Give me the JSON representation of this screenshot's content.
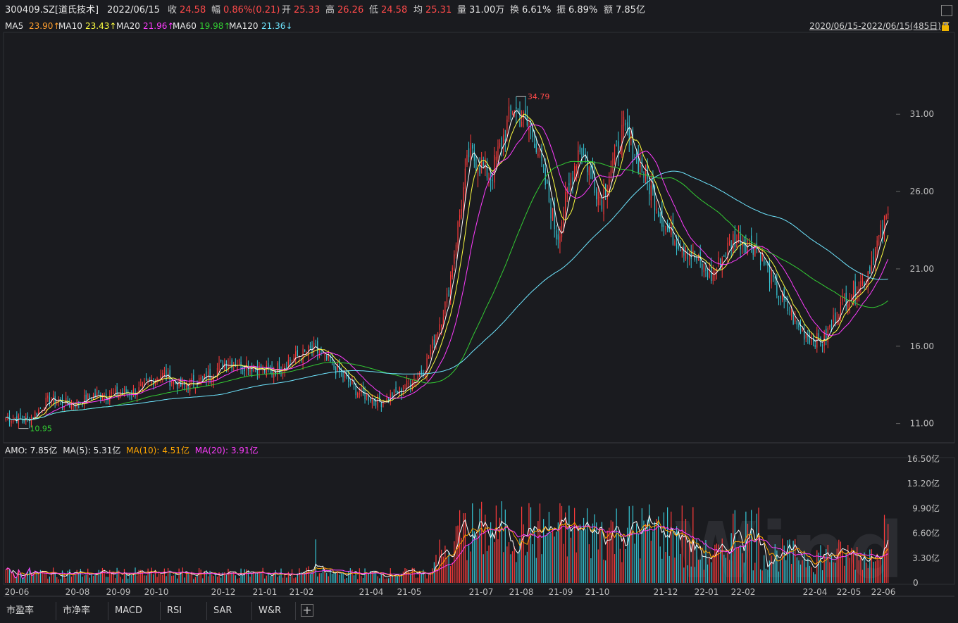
{
  "header": {
    "code": "300409.SZ[道氏技术]",
    "date": "2022/06/15",
    "close_label": "收",
    "close": "24.58",
    "change_label": "幅",
    "change": "0.86%(0.21)",
    "open_label": "开",
    "open": "25.33",
    "high_label": "高",
    "high": "26.26",
    "low_label": "低",
    "low": "24.58",
    "avg_label": "均",
    "avg": "25.31",
    "vol_label": "量",
    "vol": "31.00万",
    "turnover_label": "换",
    "turnover": "6.61%",
    "amp_label": "振",
    "amp": "6.89%",
    "amt_label": "额",
    "amt": "7.85亿"
  },
  "ma_legend": {
    "ma5_label": "MA5",
    "ma5": "23.90↑",
    "ma10_label": "MA10",
    "ma10": "23.43↑",
    "ma20_label": "MA20",
    "ma20": "21.96↑",
    "ma60_label": "MA60",
    "ma60": "19.98↑",
    "ma120_label": "MA120",
    "ma120": "21.36↓",
    "range": "2020/06/15-2022/06/15(485日)"
  },
  "amo_legend": {
    "amo": "AMO: 7.85亿",
    "ma5": "MA(5): 5.31亿",
    "ma10": "MA(10): 4.51亿",
    "ma20": "MA(20): 3.91亿"
  },
  "tabs": [
    "市盈率",
    "市净率",
    "MACD",
    "RSI",
    "SAR",
    "W&R"
  ],
  "watermark": "Wind",
  "colors": {
    "up": "#ff3b3b",
    "down": "#36c7d6",
    "ma5": "#ffffff",
    "ma10": "#ffff40",
    "ma20": "#ff3cff",
    "ma60": "#33cc33",
    "ma120": "#6ee6ff"
  },
  "chart_data": {
    "type": "candlestick",
    "price_axis": {
      "ticks": [
        "31.00",
        "26.00",
        "21.00",
        "16.00",
        "11.00"
      ],
      "ylim": [
        9.8,
        36.2
      ]
    },
    "volume_axis": {
      "ticks": [
        "16.50亿",
        "13.20亿",
        "9.90亿",
        "6.60亿",
        "3.30亿",
        "0"
      ],
      "ylim": [
        0,
        16.5
      ]
    },
    "x_ticks": [
      "20-06",
      "20-08",
      "20-09",
      "20-10",
      "20-12",
      "21-01",
      "21-02",
      "21-04",
      "21-05",
      "21-07",
      "21-08",
      "21-09",
      "21-10",
      "21-12",
      "22-01",
      "22-02",
      "22-04",
      "22-05",
      "22-06"
    ],
    "annotations": {
      "max": "34.79",
      "min": "10.95"
    },
    "close_path": [
      [
        2020.45,
        11.4
      ],
      [
        2020.5,
        11.2
      ],
      [
        2020.55,
        12.6
      ],
      [
        2020.6,
        12.2
      ],
      [
        2020.65,
        12.8
      ],
      [
        2020.7,
        12.9
      ],
      [
        2020.75,
        13.1
      ],
      [
        2020.8,
        14.2
      ],
      [
        2020.85,
        13.4
      ],
      [
        2020.9,
        13.9
      ],
      [
        2020.95,
        15.0
      ],
      [
        2021.0,
        14.8
      ],
      [
        2021.05,
        14.3
      ],
      [
        2021.1,
        15.2
      ],
      [
        2021.15,
        15.8
      ],
      [
        2021.2,
        14.5
      ],
      [
        2021.25,
        13.0
      ],
      [
        2021.3,
        12.4
      ],
      [
        2021.35,
        13.2
      ],
      [
        2021.4,
        14.6
      ],
      [
        2021.45,
        19.0
      ],
      [
        2021.5,
        28.5
      ],
      [
        2021.55,
        27.0
      ],
      [
        2021.6,
        31.5
      ],
      [
        2021.65,
        29.5
      ],
      [
        2021.7,
        23.0
      ],
      [
        2021.75,
        29.0
      ],
      [
        2021.8,
        25.5
      ],
      [
        2021.85,
        30.0
      ],
      [
        2021.9,
        27.0
      ],
      [
        2021.95,
        23.5
      ],
      [
        2022.0,
        22.0
      ],
      [
        2022.05,
        20.5
      ],
      [
        2022.1,
        23.0
      ],
      [
        2022.15,
        22.5
      ],
      [
        2022.2,
        19.5
      ],
      [
        2022.25,
        17.0
      ],
      [
        2022.3,
        16.2
      ],
      [
        2022.35,
        19.0
      ],
      [
        2022.4,
        20.5
      ],
      [
        2022.45,
        24.58
      ]
    ],
    "series": [
      {
        "name": "MA5",
        "value": 23.9
      },
      {
        "name": "MA10",
        "value": 23.43
      },
      {
        "name": "MA20",
        "value": 21.96
      },
      {
        "name": "MA60",
        "value": 19.98
      },
      {
        "name": "MA120",
        "value": 21.36
      }
    ],
    "amount_series": [
      {
        "name": "AMO",
        "value": 7.85
      },
      {
        "name": "MA(5)",
        "value": 5.31
      },
      {
        "name": "MA(10)",
        "value": 4.51
      },
      {
        "name": "MA(20)",
        "value": 3.91
      }
    ]
  }
}
